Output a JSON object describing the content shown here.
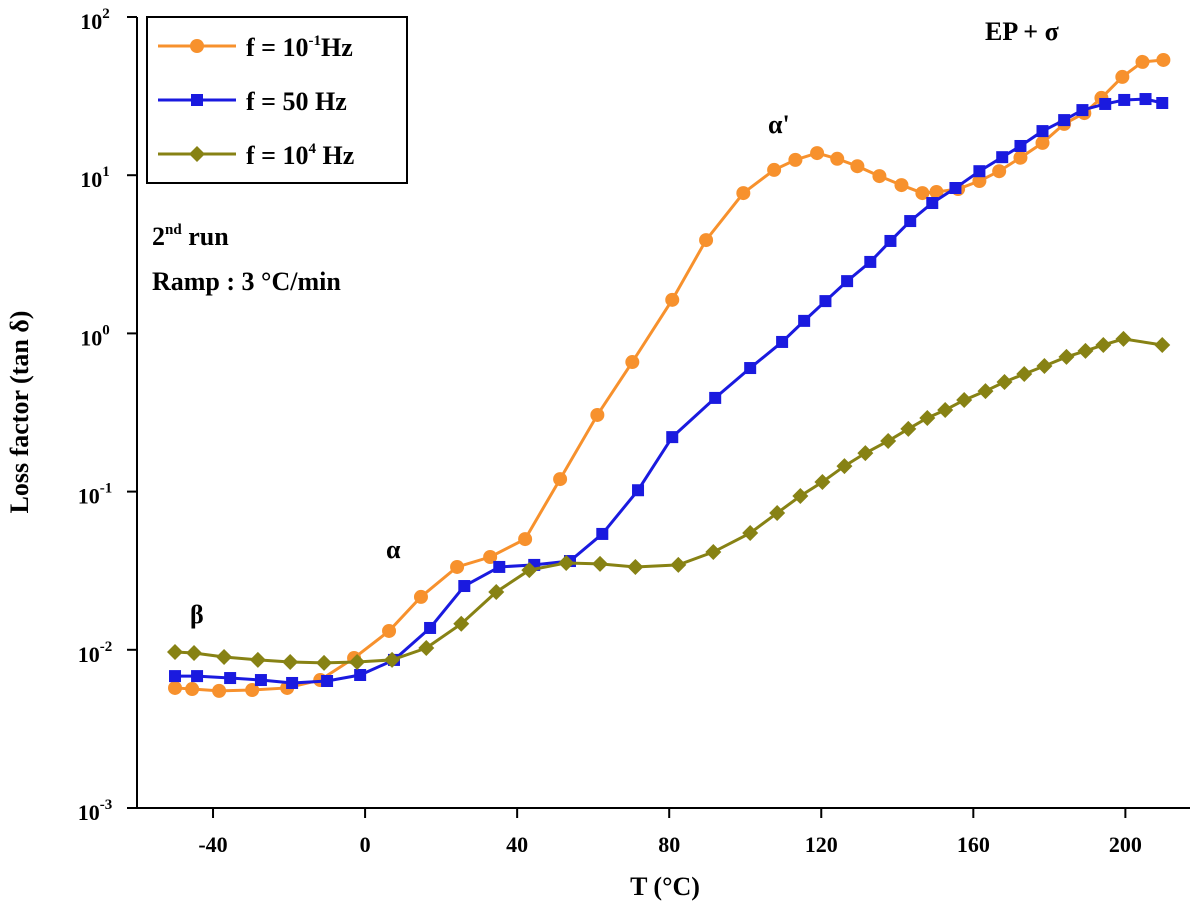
{
  "chart_data": {
    "type": "line",
    "xlabel": "T (°C)",
    "ylabel": "Loss factor (tan δ)",
    "log_y": true,
    "xlim": [
      -60,
      217
    ],
    "ylim": [
      0.001,
      100
    ],
    "xticks": [
      -40,
      0,
      40,
      80,
      120,
      160,
      200
    ],
    "yticks": [
      {
        "value": 0.001,
        "label": "10^-3"
      },
      {
        "value": 0.01,
        "label": "10^-2"
      },
      {
        "value": 0.1,
        "label": "10^-1"
      },
      {
        "value": 1,
        "label": "10^0"
      },
      {
        "value": 10,
        "label": "10^1"
      },
      {
        "value": 100,
        "label": "10^2"
      }
    ],
    "legend": "upper left",
    "annotations": [
      "β",
      "α",
      "α'",
      "EP + σ",
      "2^nd run",
      "Ramp : 3 °C/min"
    ],
    "series": [
      {
        "name": "f = 10^-1Hz",
        "color": "#f7912d",
        "marker": "circle",
        "x": [
          -50,
          -45.5,
          -38.4,
          -29.7,
          -20.5,
          -11.8,
          -2.9,
          6.3,
          14.7,
          24.2,
          32.9,
          42.1,
          51.3,
          61.1,
          70.3,
          80.8,
          89.7,
          99.5,
          107.6,
          113.2,
          118.9,
          124.2,
          129.5,
          135.3,
          141.1,
          146.6,
          150.3,
          156,
          161.6,
          166.8,
          172.4,
          178.2,
          183.9,
          189.2,
          193.7,
          199.2,
          204.5,
          210
        ],
        "values": [
          0.00574,
          0.00565,
          0.0055,
          0.00557,
          0.00574,
          0.00644,
          0.00887,
          0.01315,
          0.0216,
          0.0334,
          0.0386,
          0.0501,
          0.12,
          0.305,
          0.659,
          1.63,
          3.89,
          7.71,
          10.8,
          12.5,
          13.8,
          12.7,
          11.4,
          9.87,
          8.66,
          7.71,
          7.83,
          8.18,
          9.19,
          10.6,
          12.9,
          16.0,
          21.1,
          24.7,
          30.8,
          41.8,
          52.0,
          53.5
        ]
      },
      {
        "name": "f = 50 Hz",
        "color": "#1a1adf",
        "marker": "square",
        "x": [
          -50,
          -44.2,
          -35.5,
          -27.4,
          -19.2,
          -10,
          -1.3,
          7.6,
          17.1,
          26.1,
          35.3,
          44.5,
          53.9,
          62.4,
          71.8,
          80.8,
          92.1,
          101.3,
          109.7,
          115.5,
          121.1,
          126.8,
          132.9,
          138.2,
          143.4,
          149.2,
          155.3,
          161.6,
          167.6,
          172.4,
          178.2,
          183.9,
          188.7,
          194.7,
          199.7,
          205.3,
          209.7
        ],
        "values": [
          0.00682,
          0.00682,
          0.00663,
          0.00644,
          0.00617,
          0.00635,
          0.00693,
          0.00863,
          0.01374,
          0.0253,
          0.0334,
          0.0344,
          0.0364,
          0.054,
          0.102,
          0.221,
          0.391,
          0.604,
          0.883,
          1.2,
          1.6,
          2.14,
          2.83,
          3.84,
          5.13,
          6.67,
          8.3,
          10.6,
          13.0,
          15.3,
          19.0,
          22.3,
          25.8,
          28.2,
          29.9,
          30.3,
          28.6
        ]
      },
      {
        "name": "f = 10^4 Hz",
        "color": "#878214",
        "marker": "diamond",
        "x": [
          -50,
          -45,
          -37.1,
          -28.2,
          -19.7,
          -10.8,
          -2.1,
          7.1,
          16.1,
          25.3,
          34.5,
          43.2,
          52.9,
          61.8,
          71.1,
          82.4,
          91.6,
          101.3,
          108.4,
          114.5,
          120.3,
          126.1,
          131.6,
          137.6,
          142.9,
          147.9,
          152.6,
          157.6,
          163.2,
          168.2,
          173.4,
          178.7,
          184.5,
          189.5,
          194.2,
          199.5,
          209.7
        ],
        "values": [
          0.00968,
          0.00955,
          0.009,
          0.00863,
          0.00838,
          0.00826,
          0.00838,
          0.00863,
          0.01026,
          0.0146,
          0.0232,
          0.0319,
          0.0354,
          0.0349,
          0.0334,
          0.0344,
          0.0415,
          0.0547,
          0.0732,
          0.0938,
          0.115,
          0.145,
          0.175,
          0.209,
          0.249,
          0.292,
          0.328,
          0.379,
          0.432,
          0.493,
          0.554,
          0.622,
          0.71,
          0.775,
          0.845,
          0.923,
          0.845
        ]
      }
    ]
  }
}
